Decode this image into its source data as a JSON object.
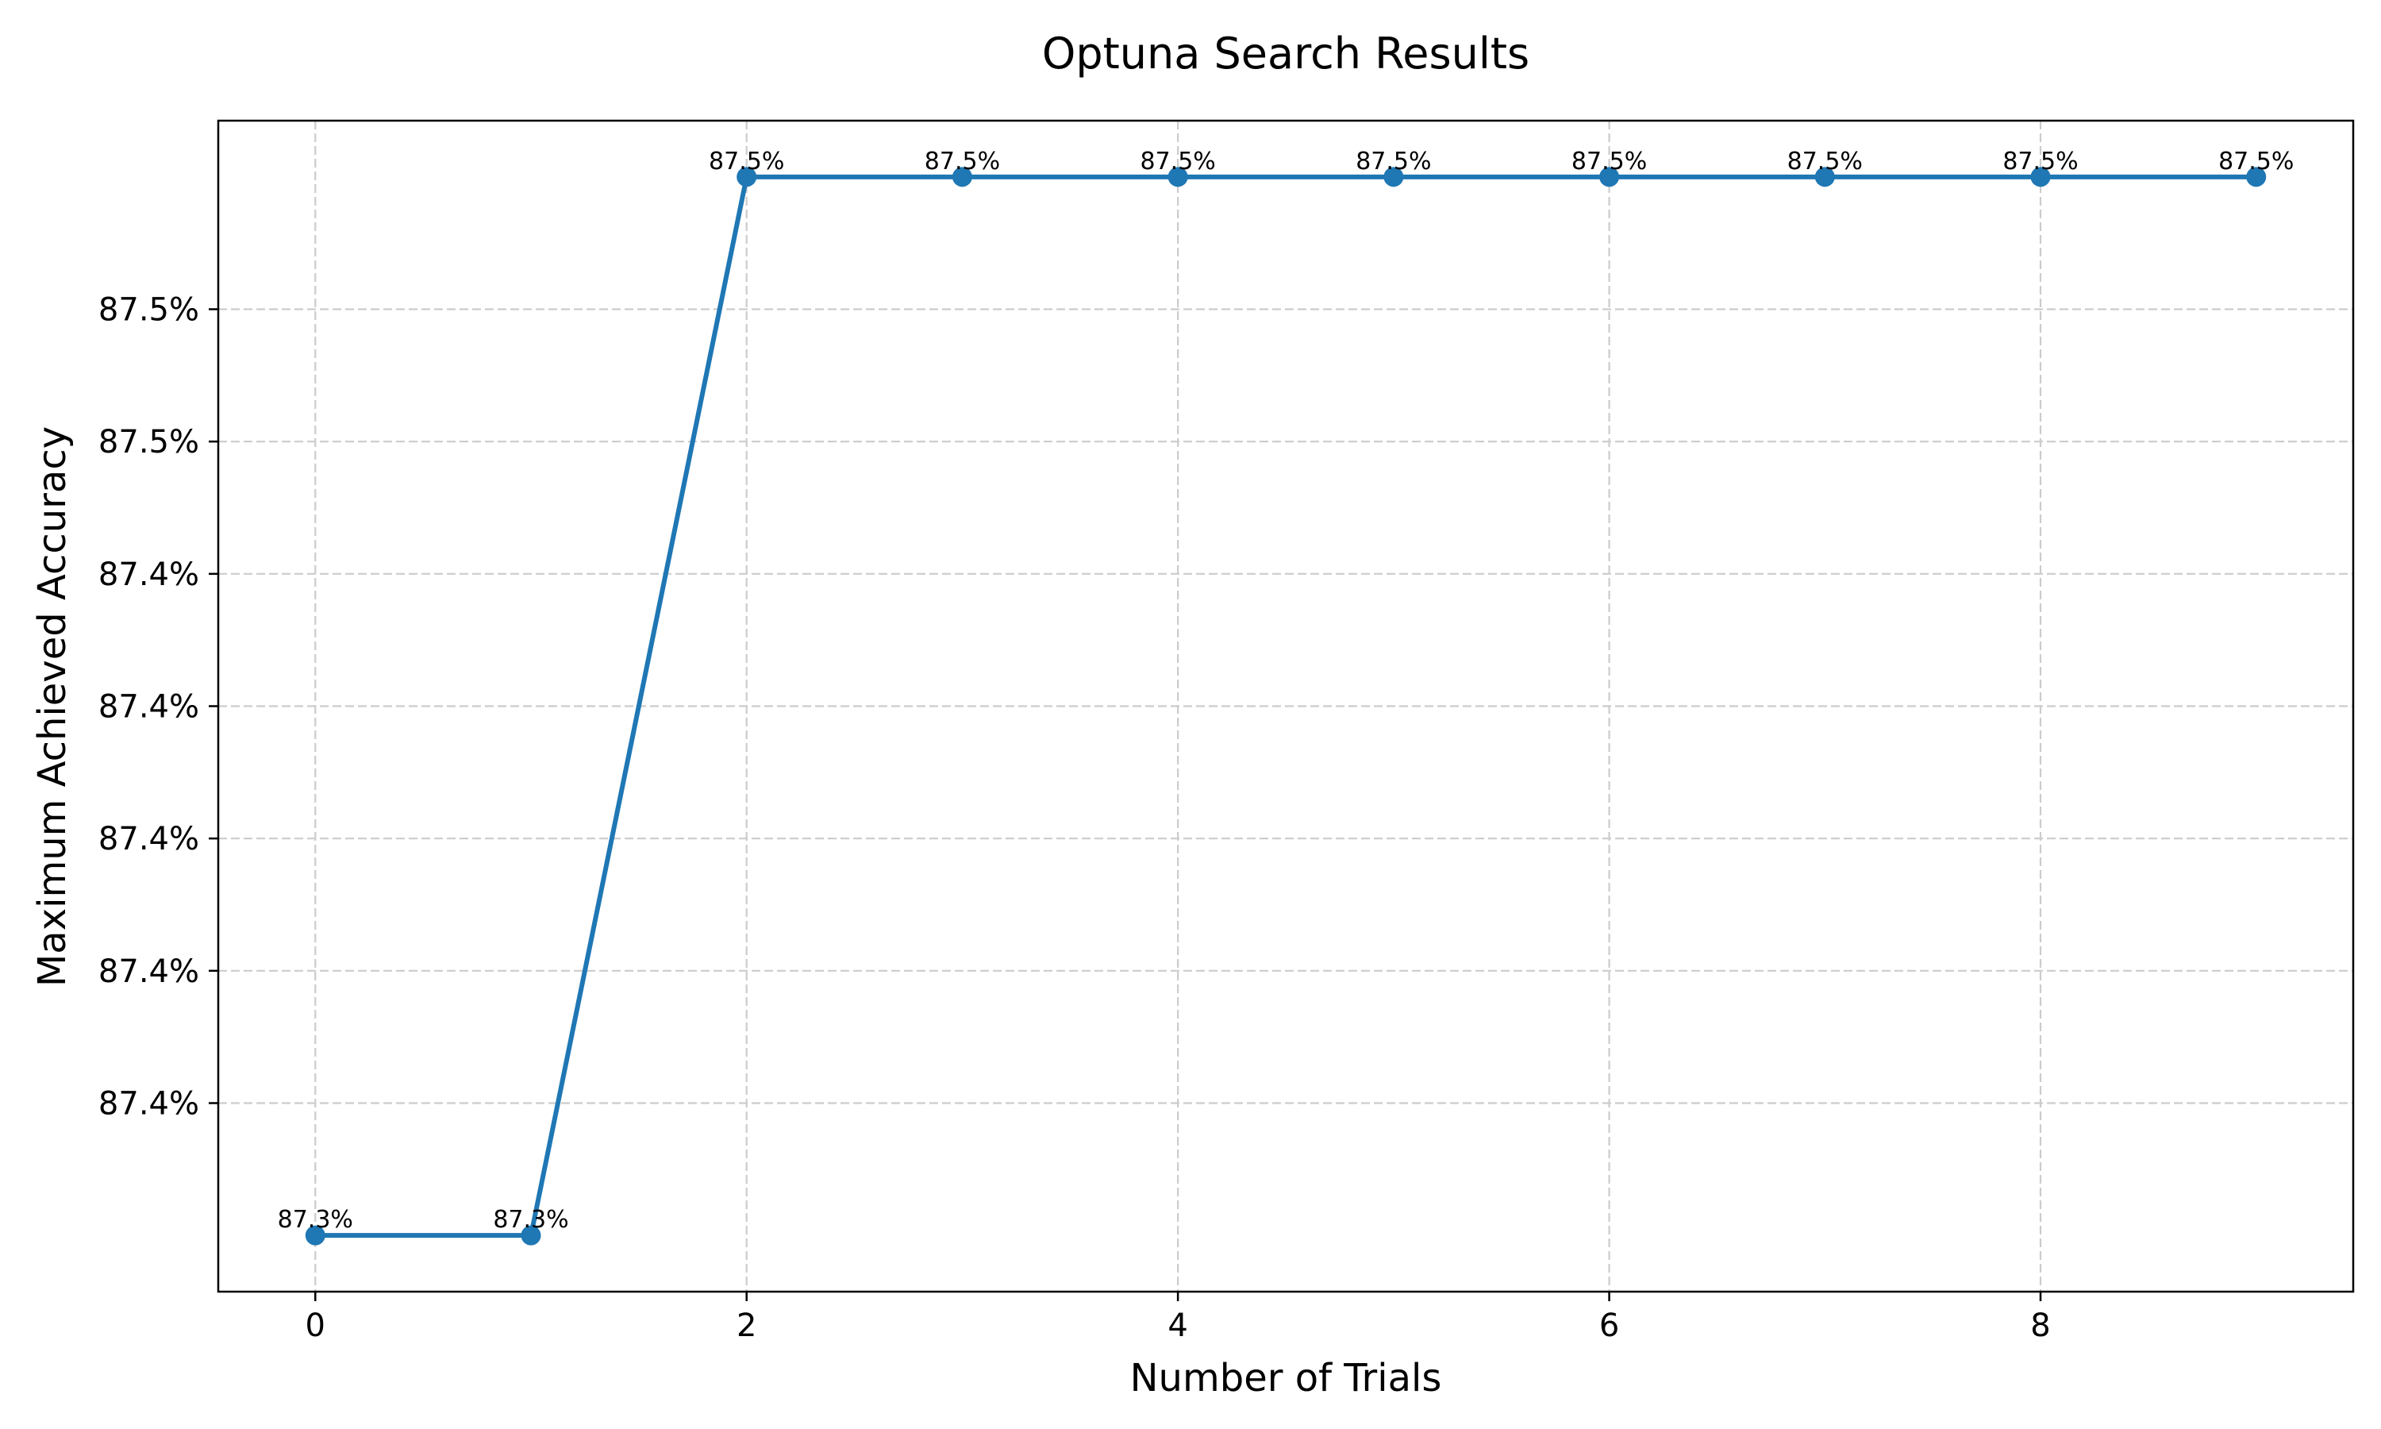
{
  "chart_data": {
    "type": "line",
    "title": "Optuna Search Results",
    "xlabel": "Number of Trials",
    "ylabel": "Maximum Achieved Accuracy",
    "x": [
      0,
      1,
      2,
      3,
      4,
      5,
      6,
      7,
      8,
      9
    ],
    "series": [
      {
        "values": [
          87.34,
          87.34,
          87.5,
          87.5,
          87.5,
          87.5,
          87.5,
          87.5,
          87.5,
          87.5
        ],
        "data_labels": [
          "87.3%",
          "87.3%",
          "87.5%",
          "87.5%",
          "87.5%",
          "87.5%",
          "87.5%",
          "87.5%",
          "87.5%",
          "87.5%"
        ],
        "color": "#1f77b4",
        "marker": "circle"
      }
    ],
    "xlim": [
      -0.45,
      9.45
    ],
    "ylim": [
      87.3315,
      87.5085
    ],
    "xticks": [
      0,
      2,
      4,
      6,
      8
    ],
    "xtick_labels": [
      "0",
      "2",
      "4",
      "6",
      "8"
    ],
    "yticks": [
      87.36,
      87.38,
      87.4,
      87.42,
      87.44,
      87.46,
      87.48
    ],
    "ytick_labels": [
      "87.4%",
      "87.4%",
      "87.4%",
      "87.4%",
      "87.4%",
      "87.5%",
      "87.5%"
    ],
    "grid": true,
    "grid_style": "dashed"
  }
}
